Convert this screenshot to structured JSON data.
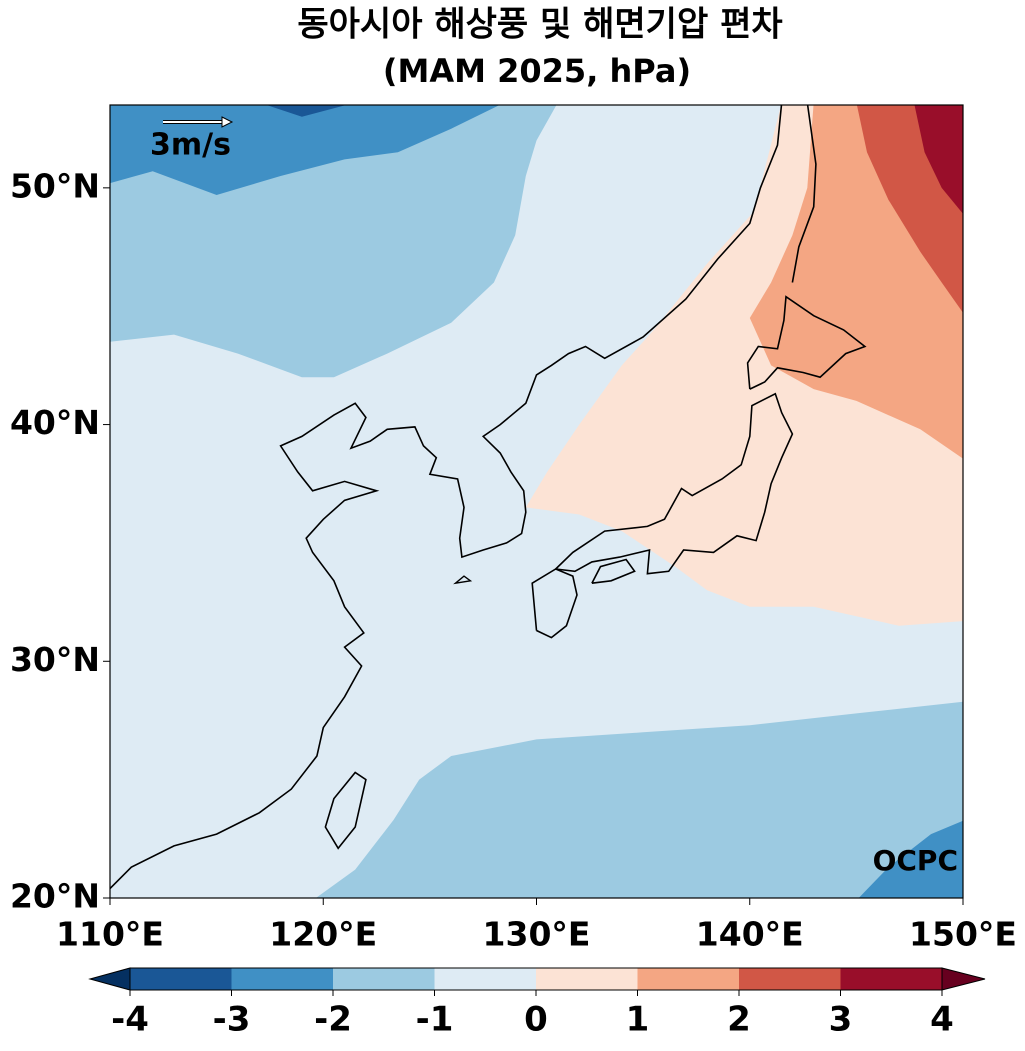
{
  "chart_data": {
    "type": "map",
    "title": "동아시아 해상풍 및 해면기압 편차",
    "subtitle": "(MAM 2025, hPa)",
    "xlim": [
      110,
      150
    ],
    "ylim": [
      20,
      53.5
    ],
    "xticks": [
      {
        "value": 110,
        "label": "110°E"
      },
      {
        "value": 120,
        "label": "120°E"
      },
      {
        "value": 130,
        "label": "130°E"
      },
      {
        "value": 140,
        "label": "140°E"
      },
      {
        "value": 150,
        "label": "150°E"
      }
    ],
    "yticks": [
      {
        "value": 20,
        "label": "20°N"
      },
      {
        "value": 30,
        "label": "30°N"
      },
      {
        "value": 40,
        "label": "40°N"
      },
      {
        "value": 50,
        "label": "50°N"
      }
    ],
    "colorbar": {
      "levels": [
        -4,
        -3,
        -2,
        -1,
        0,
        1,
        2,
        3,
        4
      ],
      "colors": [
        "#1a5796",
        "#4090c5",
        "#9ccae1",
        "#deebf4",
        "#fce3d5",
        "#f4a683",
        "#d15746",
        "#990e2a"
      ],
      "extend_colors": [
        "#053061",
        "#67001f"
      ]
    },
    "reference_vector": {
      "label": "3m/s"
    },
    "annotation": "OCPC"
  }
}
